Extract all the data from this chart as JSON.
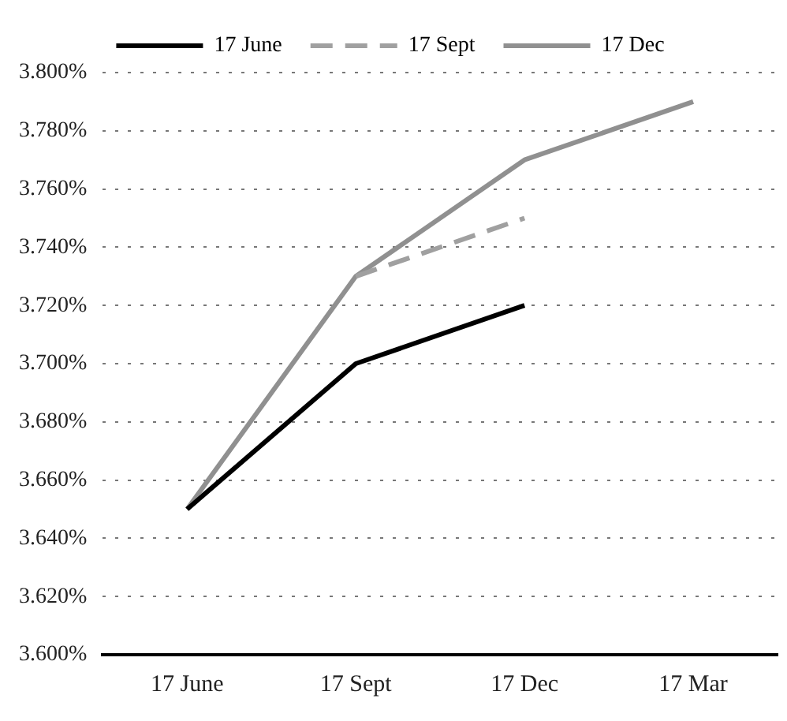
{
  "chart_data": {
    "type": "line",
    "categories": [
      "17 June",
      "17 Sept",
      "17 Dec",
      "17 Mar"
    ],
    "series": [
      {
        "name": "17 June",
        "color": "#000000",
        "values": [
          3.65,
          3.7,
          3.72,
          null
        ]
      },
      {
        "name": "17 Sept",
        "color": "#a0a0a0",
        "line_style": "dashed",
        "values": [
          null,
          3.73,
          3.75,
          null
        ]
      },
      {
        "name": "17 Dec",
        "color": "#909090",
        "values": [
          3.65,
          3.73,
          3.77,
          3.79
        ]
      }
    ],
    "ylim": [
      3.6,
      3.8
    ],
    "yticks": [
      {
        "value": 3.6,
        "label": "3.600%"
      },
      {
        "value": 3.62,
        "label": "3.620%"
      },
      {
        "value": 3.64,
        "label": "3.640%"
      },
      {
        "value": 3.66,
        "label": "3.660%"
      },
      {
        "value": 3.68,
        "label": "3.680%"
      },
      {
        "value": 3.7,
        "label": "3.700%"
      },
      {
        "value": 3.72,
        "label": "3.720%"
      },
      {
        "value": 3.74,
        "label": "3.740%"
      },
      {
        "value": 3.76,
        "label": "3.760%"
      },
      {
        "value": 3.78,
        "label": "3.780%"
      },
      {
        "value": 3.8,
        "label": "3.800%"
      }
    ],
    "grid": "y",
    "legend": "top",
    "marker": "none",
    "line_style": "solid"
  }
}
